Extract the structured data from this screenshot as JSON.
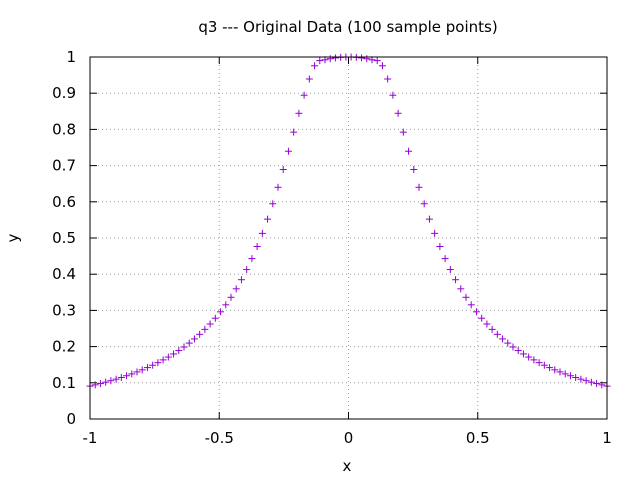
{
  "chart_data": {
    "type": "scatter",
    "title": "q3 --- Original Data (100 sample points)",
    "xlabel": "x",
    "ylabel": "y",
    "xlim": [
      -1,
      1
    ],
    "ylim": [
      0,
      1
    ],
    "xticks": [
      -1,
      -0.5,
      0,
      0.5,
      1
    ],
    "xtick_labels": [
      "-1",
      "-0.5",
      "0",
      "0.5",
      "1"
    ],
    "yticks": [
      0,
      0.1,
      0.2,
      0.3,
      0.4,
      0.5,
      0.6,
      0.7,
      0.8,
      0.9,
      1
    ],
    "ytick_labels": [
      "0",
      "0.1",
      "0.2",
      "0.3",
      "0.4",
      "0.5",
      "0.6",
      "0.7",
      "0.8",
      "0.9",
      "1"
    ],
    "grid": true,
    "marker": "+",
    "color": "#9400d3",
    "series": [
      {
        "x": [
          -1.0,
          -0.9798,
          -0.9596,
          -0.9394,
          -0.9192,
          -0.899,
          -0.8788,
          -0.8586,
          -0.8384,
          -0.8182,
          -0.798,
          -0.7778,
          -0.7576,
          -0.7374,
          -0.7172,
          -0.697,
          -0.6768,
          -0.6566,
          -0.6364,
          -0.6162,
          -0.596,
          -0.5758,
          -0.5556,
          -0.5354,
          -0.5152,
          -0.4949,
          -0.4747,
          -0.4545,
          -0.4343,
          -0.4141,
          -0.3939,
          -0.3737,
          -0.3535,
          -0.3333,
          -0.3131,
          -0.2929,
          -0.2727,
          -0.2525,
          -0.2323,
          -0.2121,
          -0.1919,
          -0.1717,
          -0.1515,
          -0.1313,
          -0.1111,
          -0.0909,
          -0.0707,
          -0.0505,
          -0.0303,
          -0.0101,
          0.0101,
          0.0303,
          0.0505,
          0.0707,
          0.0909,
          0.1111,
          0.1313,
          0.1515,
          0.1717,
          0.1919,
          0.2121,
          0.2323,
          0.2525,
          0.2727,
          0.2929,
          0.3131,
          0.3333,
          0.3535,
          0.3737,
          0.3939,
          0.4141,
          0.4343,
          0.4545,
          0.4747,
          0.4949,
          0.5152,
          0.5354,
          0.5556,
          0.5758,
          0.596,
          0.6162,
          0.6364,
          0.6566,
          0.6768,
          0.697,
          0.7172,
          0.7374,
          0.7576,
          0.7778,
          0.798,
          0.8182,
          0.8384,
          0.8586,
          0.8788,
          0.899,
          0.9192,
          0.9394,
          0.9596,
          0.9798,
          1.0
        ],
        "y": [
          0.0909,
          0.0943,
          0.0979,
          0.1017,
          0.1058,
          0.11,
          0.1146,
          0.1195,
          0.1246,
          0.1301,
          0.1358,
          0.142,
          0.1486,
          0.1556,
          0.1633,
          0.1711,
          0.1797,
          0.1891,
          0.1989,
          0.2097,
          0.2212,
          0.2339,
          0.2476,
          0.2624,
          0.2784,
          0.2961,
          0.3154,
          0.3362,
          0.3596,
          0.3848,
          0.4128,
          0.4431,
          0.4765,
          0.5128,
          0.5521,
          0.5946,
          0.6401,
          0.6892,
          0.7397,
          0.7924,
          0.8445,
          0.8944,
          0.9392,
          0.9757,
          0.9901,
          0.9923,
          0.9952,
          0.9975,
          0.9991,
          0.9999,
          0.9999,
          0.9991,
          0.9975,
          0.9952,
          0.9923,
          0.9901,
          0.9757,
          0.9392,
          0.8944,
          0.8445,
          0.7924,
          0.7397,
          0.6892,
          0.6401,
          0.5946,
          0.5521,
          0.5128,
          0.4765,
          0.4431,
          0.4128,
          0.3848,
          0.3596,
          0.3362,
          0.3154,
          0.2961,
          0.2784,
          0.2624,
          0.2476,
          0.2339,
          0.2212,
          0.2097,
          0.1989,
          0.1891,
          0.1797,
          0.1711,
          0.1633,
          0.1556,
          0.1486,
          0.142,
          0.1358,
          0.1301,
          0.1246,
          0.1195,
          0.1146,
          0.11,
          0.1058,
          0.1017,
          0.0979,
          0.0943,
          0.0909
        ]
      }
    ]
  }
}
